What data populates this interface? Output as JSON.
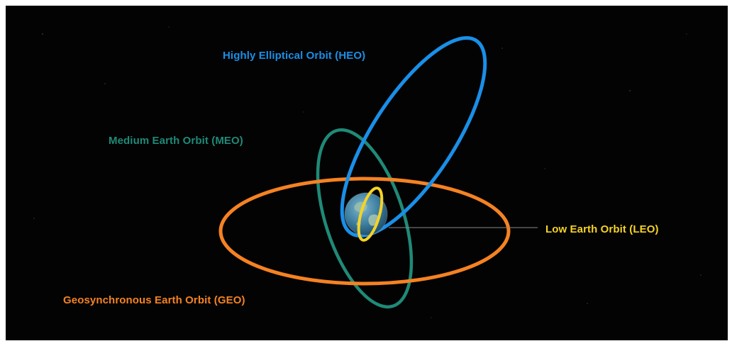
{
  "colors": {
    "background": "#030303",
    "heo": "#1a8fe8",
    "meo": "#1f8a78",
    "geo": "#f58222",
    "leo": "#f5d327",
    "leader_line": "#8a8a8a",
    "earth_ocean": "#3f7fa0",
    "earth_land": "#8fb0a0"
  },
  "labels": {
    "heo": "Highly Elliptical Orbit (HEO)",
    "meo": "Medium Earth Orbit (MEO)",
    "leo": "Low Earth Orbit (LEO)",
    "geo": "Geosynchronous Earth Orbit (GEO)"
  },
  "icons": {
    "earth": "earth-globe-icon"
  }
}
